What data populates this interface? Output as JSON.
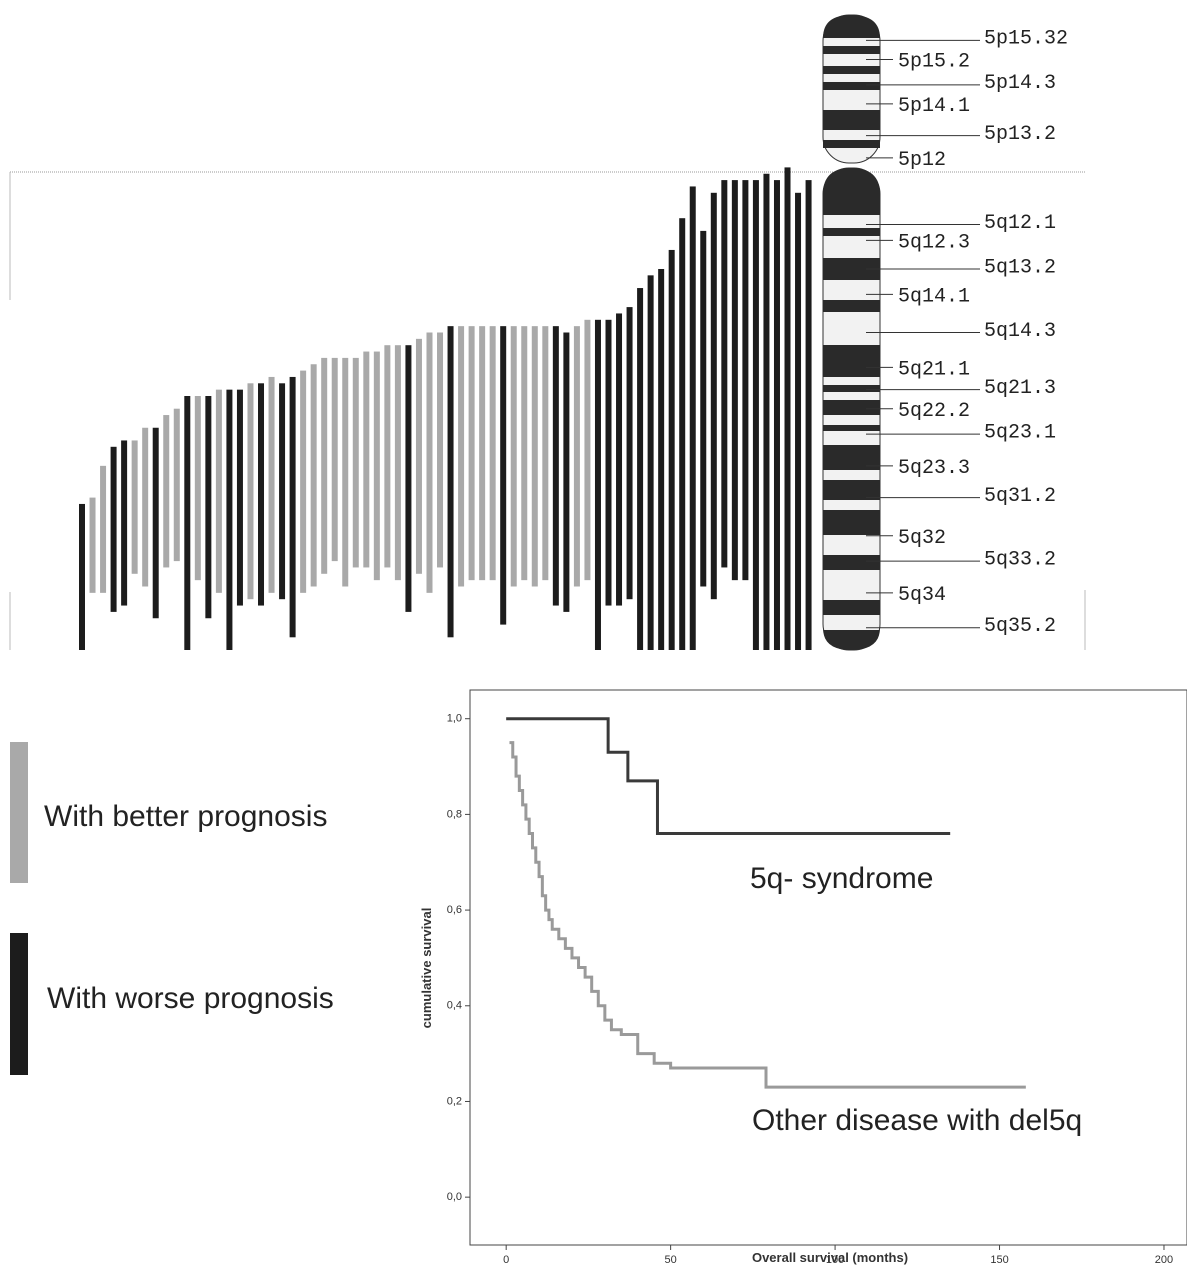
{
  "chart_data": [
    {
      "type": "deletion-map",
      "ylim": [
        0,
        100
      ],
      "series": [
        {
          "name": "With better prognosis",
          "color": "#a9a9a9",
          "start": [
            null,
            76,
            71,
            null,
            null,
            67,
            65,
            null,
            63,
            62,
            null,
            60,
            null,
            59,
            null,
            null,
            58,
            null,
            57,
            null,
            null,
            56,
            55,
            54,
            54,
            54,
            54,
            53,
            53,
            52,
            52,
            null,
            51,
            50,
            50,
            null,
            49,
            49,
            49,
            49,
            null,
            49,
            49,
            49,
            49,
            null,
            null,
            49,
            48,
            null,
            null,
            null,
            null,
            null,
            null,
            null,
            null,
            null,
            null,
            null,
            null,
            null,
            null,
            null,
            null,
            null,
            null,
            null,
            null,
            null
          ],
          "end": [
            null,
            91,
            91,
            null,
            null,
            88,
            90,
            null,
            87,
            86,
            null,
            89,
            null,
            91,
            null,
            null,
            92,
            null,
            91,
            null,
            null,
            91,
            90,
            88,
            86,
            90,
            87,
            87,
            89,
            87,
            89,
            null,
            88,
            91,
            87,
            null,
            90,
            89,
            89,
            89,
            null,
            90,
            89,
            90,
            89,
            null,
            null,
            90,
            89,
            null,
            null,
            null,
            null,
            null,
            null,
            null,
            null,
            null,
            null,
            null,
            null,
            null,
            null,
            null,
            null,
            null,
            null,
            null,
            null,
            null
          ]
        },
        {
          "name": "With worse prognosis",
          "color": "#1c1c1c",
          "start": [
            77,
            null,
            null,
            68,
            67,
            null,
            null,
            65,
            null,
            null,
            60,
            null,
            60,
            null,
            59,
            59,
            null,
            58,
            null,
            58,
            57,
            null,
            null,
            null,
            null,
            null,
            null,
            null,
            null,
            null,
            null,
            52,
            null,
            null,
            null,
            49,
            null,
            null,
            null,
            null,
            49,
            null,
            null,
            null,
            null,
            49,
            50,
            null,
            null,
            48,
            48,
            47,
            46,
            43,
            41,
            40,
            37,
            32,
            27,
            34,
            28,
            26,
            26,
            26,
            26,
            25,
            26,
            24,
            28,
            26
          ],
          "end": [
            100,
            null,
            null,
            94,
            93,
            null,
            null,
            95,
            null,
            null,
            100,
            null,
            95,
            null,
            100,
            93,
            null,
            93,
            null,
            92,
            98,
            null,
            null,
            null,
            null,
            null,
            null,
            null,
            null,
            null,
            null,
            94,
            null,
            null,
            null,
            98,
            null,
            null,
            null,
            null,
            96,
            null,
            null,
            null,
            null,
            93,
            94,
            null,
            null,
            100,
            93,
            93,
            92,
            100,
            100,
            100,
            100,
            100,
            100,
            90,
            92,
            87,
            89,
            89,
            100,
            100,
            100,
            100,
            100,
            100
          ]
        }
      ],
      "bands": [
        {
          "label": "5p15.32",
          "position": 4
        },
        {
          "label": "5p15.2",
          "position": 7
        },
        {
          "label": "5p14.3",
          "position": 11
        },
        {
          "label": "5p14.1",
          "position": 14
        },
        {
          "label": "5p13.2",
          "position": 19
        },
        {
          "label": "5p12",
          "position": 22.5
        },
        {
          "label": "5q12.1",
          "position": 33
        },
        {
          "label": "5q12.3",
          "position": 35.5
        },
        {
          "label": "5q13.2",
          "position": 40
        },
        {
          "label": "5q14.1",
          "position": 44
        },
        {
          "label": "5q14.3",
          "position": 50
        },
        {
          "label": "5q21.1",
          "position": 55.5
        },
        {
          "label": "5q21.3",
          "position": 59
        },
        {
          "label": "5q22.2",
          "position": 62
        },
        {
          "label": "5q23.1",
          "position": 66
        },
        {
          "label": "5q23.3",
          "position": 71
        },
        {
          "label": "5q31.2",
          "position": 76
        },
        {
          "label": "5q32",
          "position": 82
        },
        {
          "label": "5q33.2",
          "position": 86
        },
        {
          "label": "5q34",
          "position": 91
        },
        {
          "label": "5q35.2",
          "position": 96.5
        }
      ]
    },
    {
      "type": "survival",
      "xlabel": "Overall survival (months)",
      "ylabel": "cumulative survival",
      "xlim": [
        -11,
        207
      ],
      "ylim": [
        -0.1,
        1.06
      ],
      "xticks": [
        0,
        50,
        100,
        150,
        200
      ],
      "yticks": [
        {
          "value": 0,
          "label": "0,0"
        },
        {
          "value": 0.2,
          "label": "0,2"
        },
        {
          "value": 0.4,
          "label": "0,4"
        },
        {
          "value": 0.6,
          "label": "0,6"
        },
        {
          "value": 0.8,
          "label": "0,8"
        },
        {
          "value": 1,
          "label": "1,0"
        }
      ],
      "step": true,
      "series": [
        {
          "name": "5q- syndrome",
          "color": "#3a3a3a",
          "x": [
            0,
            31,
            37,
            46,
            135
          ],
          "values": [
            1.0,
            0.93,
            0.87,
            0.76,
            0.76
          ]
        },
        {
          "name": "Other disease with del5q",
          "color": "#9a9a9a",
          "x": [
            1,
            2,
            3,
            4,
            5,
            6,
            7,
            8,
            9,
            10,
            11,
            12,
            13,
            14,
            16,
            18,
            20,
            22,
            24,
            26,
            28,
            30,
            32,
            35,
            40,
            45,
            50,
            79,
            158
          ],
          "values": [
            0.95,
            0.92,
            0.88,
            0.85,
            0.82,
            0.79,
            0.76,
            0.73,
            0.7,
            0.67,
            0.63,
            0.6,
            0.58,
            0.56,
            0.54,
            0.52,
            0.5,
            0.48,
            0.46,
            0.43,
            0.4,
            0.37,
            0.35,
            0.34,
            0.3,
            0.28,
            0.27,
            0.23,
            0.23
          ]
        }
      ]
    }
  ]
}
